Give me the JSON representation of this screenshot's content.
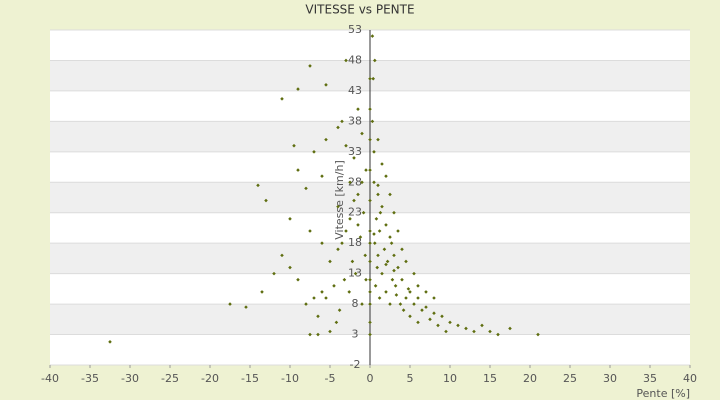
{
  "chart_data": {
    "type": "scatter",
    "title": "VITESSE vs PENTE",
    "x_label": "Pente [%]",
    "y_label": "Vitesse [km/h]",
    "color": "#5f6e10",
    "xlim": [
      -40,
      40
    ],
    "xticks": [
      -40,
      -35,
      -30,
      -25,
      -20,
      -15,
      -10,
      -5,
      0,
      5,
      10,
      15,
      20,
      25,
      30,
      35,
      40
    ],
    "ylim": [
      -2,
      53
    ],
    "yticks": [
      -2,
      3,
      8,
      13,
      18,
      23,
      28,
      33,
      38,
      43,
      48,
      53
    ],
    "grid": true,
    "x": [
      0.5,
      1,
      1.5,
      0.8,
      2,
      1.2,
      2.5,
      0.6,
      1.8,
      3,
      2.2,
      0.9,
      3.5,
      1.5,
      2.8,
      4,
      0.7,
      3.2,
      5,
      2,
      4.5,
      6,
      1.2,
      3.8,
      5.5,
      7,
      2.5,
      6.5,
      8,
      4.2,
      9,
      10,
      7.5,
      11,
      12,
      9.5,
      14,
      15,
      16,
      13,
      21,
      17.5,
      6,
      8.5,
      5,
      1,
      0.5,
      1.5,
      2,
      0.3,
      1,
      2.5,
      0.4,
      0.6,
      0.3,
      3,
      3.5,
      4,
      4.5,
      5.5,
      6,
      7,
      8,
      3,
      2,
      1,
      0.5,
      1.3,
      2.7,
      3.3,
      4.8,
      -0.5,
      -1,
      -1.5,
      -2,
      -0.8,
      -2.5,
      -3,
      -1.2,
      -3.5,
      -4,
      -0.6,
      -2.2,
      -5,
      -1.8,
      -3.2,
      -4.5,
      -6,
      -2.6,
      -5.5,
      -7,
      -1,
      -8,
      -3.8,
      -6.5,
      -4.2,
      -5,
      -6.5,
      -7.5,
      -9,
      -10,
      -11,
      -12,
      -13.5,
      -15.5,
      -17.5,
      -13,
      -14,
      -10,
      -9,
      -9.5,
      -7,
      -5.5,
      -4,
      -3.5,
      -3,
      -2,
      -1,
      -6,
      -8,
      -7.5,
      -6,
      -4,
      -2.5,
      -1.5,
      -0.5,
      -32.5,
      -9,
      -11,
      -7.5,
      -5.5,
      -3,
      -1.5,
      0,
      0,
      0,
      0,
      0,
      0,
      0,
      0,
      0,
      0,
      0,
      0,
      0
    ],
    "values": [
      28,
      26,
      24,
      22,
      21,
      20,
      19,
      18,
      17,
      16,
      15,
      14,
      14,
      13,
      12,
      12,
      11,
      11,
      10,
      10,
      9,
      9,
      9,
      8,
      8,
      7.5,
      8,
      7,
      6.5,
      7,
      6,
      5,
      5.5,
      4.5,
      4,
      3.5,
      4.5,
      3.5,
      3,
      3.5,
      3,
      4,
      5,
      4.5,
      6,
      35,
      33,
      31,
      29,
      38,
      27.5,
      26,
      45,
      48,
      52,
      23,
      20,
      17,
      15,
      13,
      11,
      10,
      9,
      13.5,
      14.5,
      16,
      19.5,
      23,
      18,
      9.5,
      10.5,
      30,
      28,
      26,
      25,
      23,
      22,
      20,
      19,
      18,
      17,
      16,
      15,
      15,
      13,
      12,
      11,
      10,
      10,
      9,
      9,
      8,
      8,
      7,
      6,
      5,
      3.5,
      3,
      3,
      12,
      14,
      16,
      13,
      10,
      7.5,
      8,
      25,
      27.5,
      22,
      30,
      34,
      33,
      35,
      37,
      38,
      34,
      32,
      36,
      29,
      27,
      20,
      18,
      24,
      28,
      21,
      12,
      1.8,
      43.3,
      41.7,
      47.1,
      44,
      48,
      40,
      25,
      20,
      15,
      10,
      5,
      3,
      30,
      35,
      40,
      18,
      12,
      8,
      45
    ]
  }
}
